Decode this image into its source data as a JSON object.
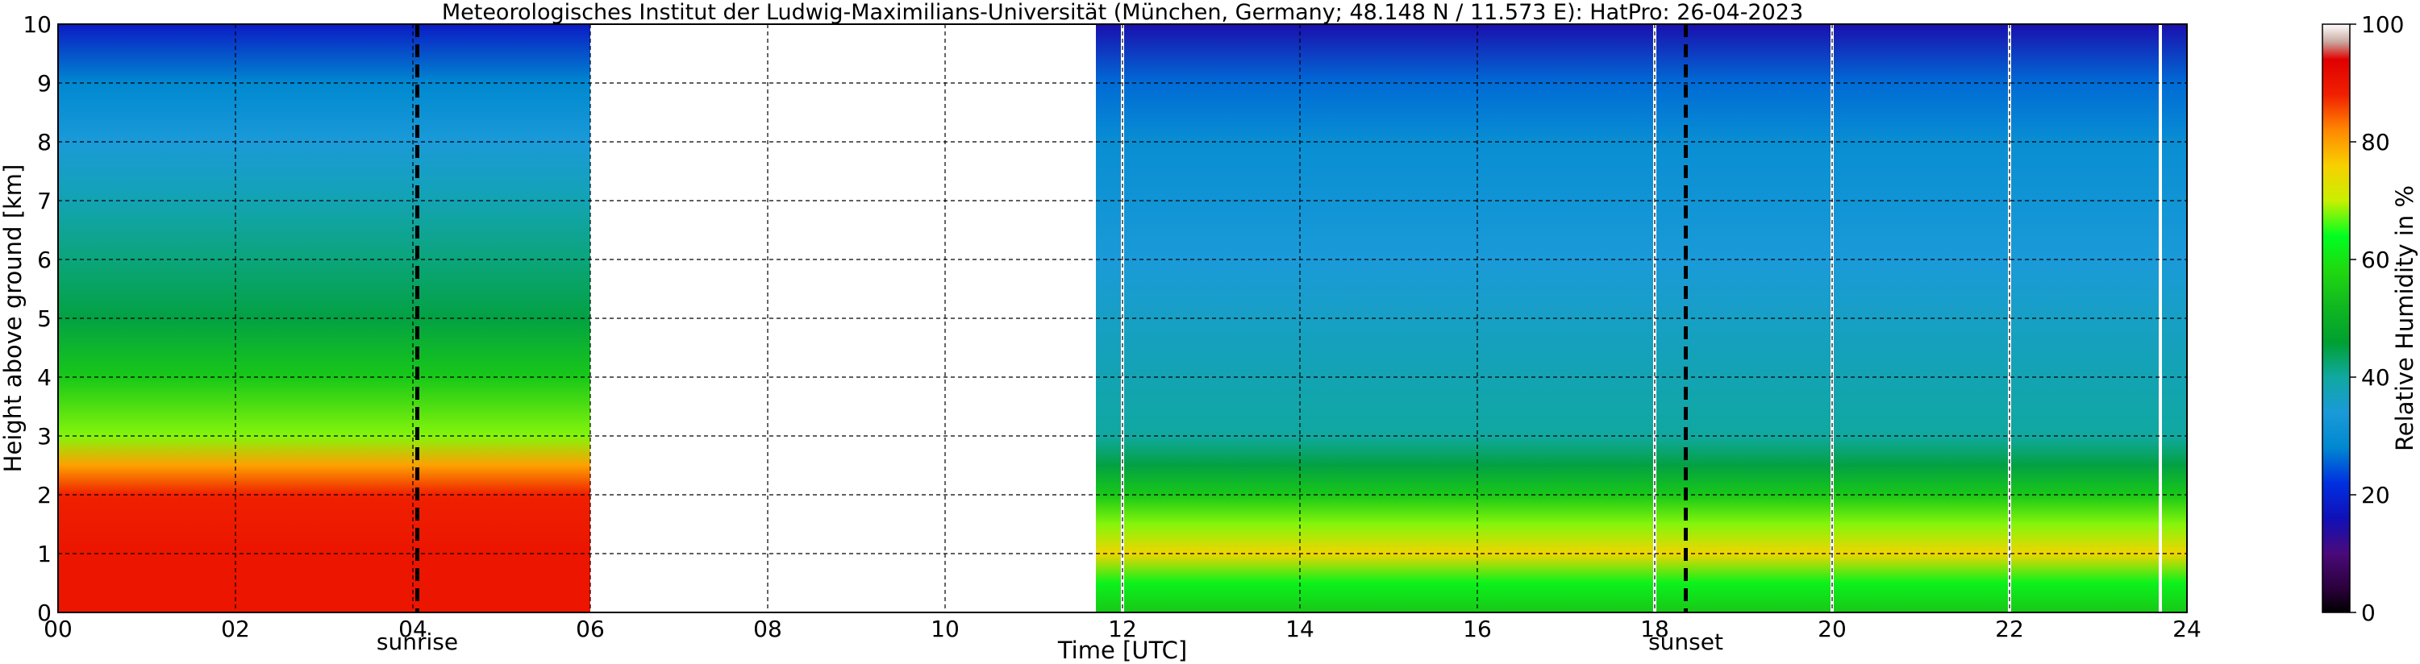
{
  "chart_data": {
    "type": "heatmap",
    "title": "Meteorologisches Institut der Ludwig-Maximilians-Universität (München, Germany; 48.148 N / 11.573 E):    HatPro: 26-04-2023",
    "xlabel": "Time [UTC]",
    "ylabel": "Height above ground [km]",
    "colorbar_label": "Relative Humidity in %",
    "xlim": [
      0,
      24
    ],
    "ylim": [
      0,
      10
    ],
    "x_ticks": [
      "00",
      "02",
      "04",
      "06",
      "08",
      "10",
      "12",
      "14",
      "16",
      "18",
      "20",
      "22",
      "24"
    ],
    "y_ticks": [
      "0",
      "1",
      "2",
      "3",
      "4",
      "5",
      "6",
      "7",
      "8",
      "9",
      "10"
    ],
    "colorbar_ticks": [
      "0",
      "20",
      "40",
      "60",
      "80",
      "100"
    ],
    "clim": [
      0,
      100
    ],
    "grid": true,
    "data_gaps_hours": [
      [
        6.0,
        11.7
      ]
    ],
    "markers": [
      {
        "label": "sunrise",
        "x": 4.05
      },
      {
        "label": "sunset",
        "x": 18.35
      }
    ],
    "gap_lines_hours": [
      12.0,
      18.0,
      20.0,
      22.0,
      23.7
    ],
    "humidity_profiles": [
      {
        "period": "00-06",
        "rh_by_height_km": [
          [
            0,
            90
          ],
          [
            1,
            90
          ],
          [
            2,
            88
          ],
          [
            2.5,
            80
          ],
          [
            3,
            68
          ],
          [
            4,
            55
          ],
          [
            5,
            45
          ],
          [
            6,
            42
          ],
          [
            7,
            38
          ],
          [
            8,
            34
          ],
          [
            9,
            28
          ],
          [
            10,
            18
          ]
        ]
      },
      {
        "period": "11.7-24",
        "rh_by_height_km": [
          [
            0,
            55
          ],
          [
            0.5,
            62
          ],
          [
            1,
            75
          ],
          [
            1.5,
            68
          ],
          [
            2,
            55
          ],
          [
            2.5,
            45
          ],
          [
            3,
            40
          ],
          [
            4,
            38
          ],
          [
            5,
            36
          ],
          [
            6,
            34
          ],
          [
            7,
            32
          ],
          [
            8,
            30
          ],
          [
            9,
            26
          ],
          [
            10,
            15
          ]
        ]
      }
    ],
    "colormap": [
      {
        "v": 0,
        "c": "#000000"
      },
      {
        "v": 4,
        "c": "#2a003a"
      },
      {
        "v": 10,
        "c": "#4a0a7a"
      },
      {
        "v": 16,
        "c": "#1010b8"
      },
      {
        "v": 22,
        "c": "#0030e0"
      },
      {
        "v": 28,
        "c": "#0088d0"
      },
      {
        "v": 34,
        "c": "#1a9ad8"
      },
      {
        "v": 40,
        "c": "#10a8a0"
      },
      {
        "v": 46,
        "c": "#00a030"
      },
      {
        "v": 52,
        "c": "#10b820"
      },
      {
        "v": 58,
        "c": "#20d810"
      },
      {
        "v": 64,
        "c": "#00ff20"
      },
      {
        "v": 70,
        "c": "#c8f000"
      },
      {
        "v": 76,
        "c": "#f8d000"
      },
      {
        "v": 82,
        "c": "#ff8800"
      },
      {
        "v": 88,
        "c": "#f02000"
      },
      {
        "v": 94,
        "c": "#e00000"
      },
      {
        "v": 97,
        "c": "#c8a8a0"
      },
      {
        "v": 100,
        "c": "#ffffff"
      }
    ]
  }
}
